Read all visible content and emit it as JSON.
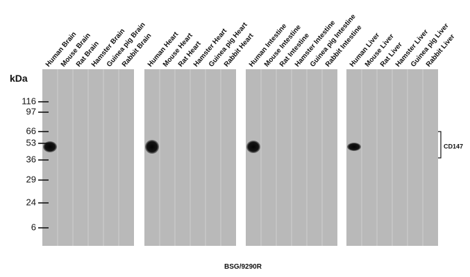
{
  "marker_unit": "kDa",
  "markers": [
    "116",
    "97",
    "66",
    "53",
    "36",
    "29",
    "24",
    "6"
  ],
  "panels": [
    {
      "lanes": [
        "Human Brain",
        "Mouse Brain",
        "Rat Brain",
        "Hamster Brain",
        "Guinea pig Brain",
        "Rabbit Brain"
      ]
    },
    {
      "lanes": [
        "Human Heart",
        "Mouse Heart",
        "Rat Heart",
        "Hamster Heart",
        "Guinea pig Heart",
        "Rabbit Heart"
      ]
    },
    {
      "lanes": [
        "Human Intestine",
        "Mouse Intestine",
        "Rat Intestine",
        "Hamster Intestine",
        "Guinea pig Intestine",
        "Rabbit Intestine"
      ]
    },
    {
      "lanes": [
        "Human Liver",
        "Mouse Liver",
        "Rat Liver",
        "Hamster Liver",
        "Guinea pig Liver",
        "Rabbit Liver"
      ]
    }
  ],
  "band_label": "CD147",
  "caption": "BSG/9290R"
}
